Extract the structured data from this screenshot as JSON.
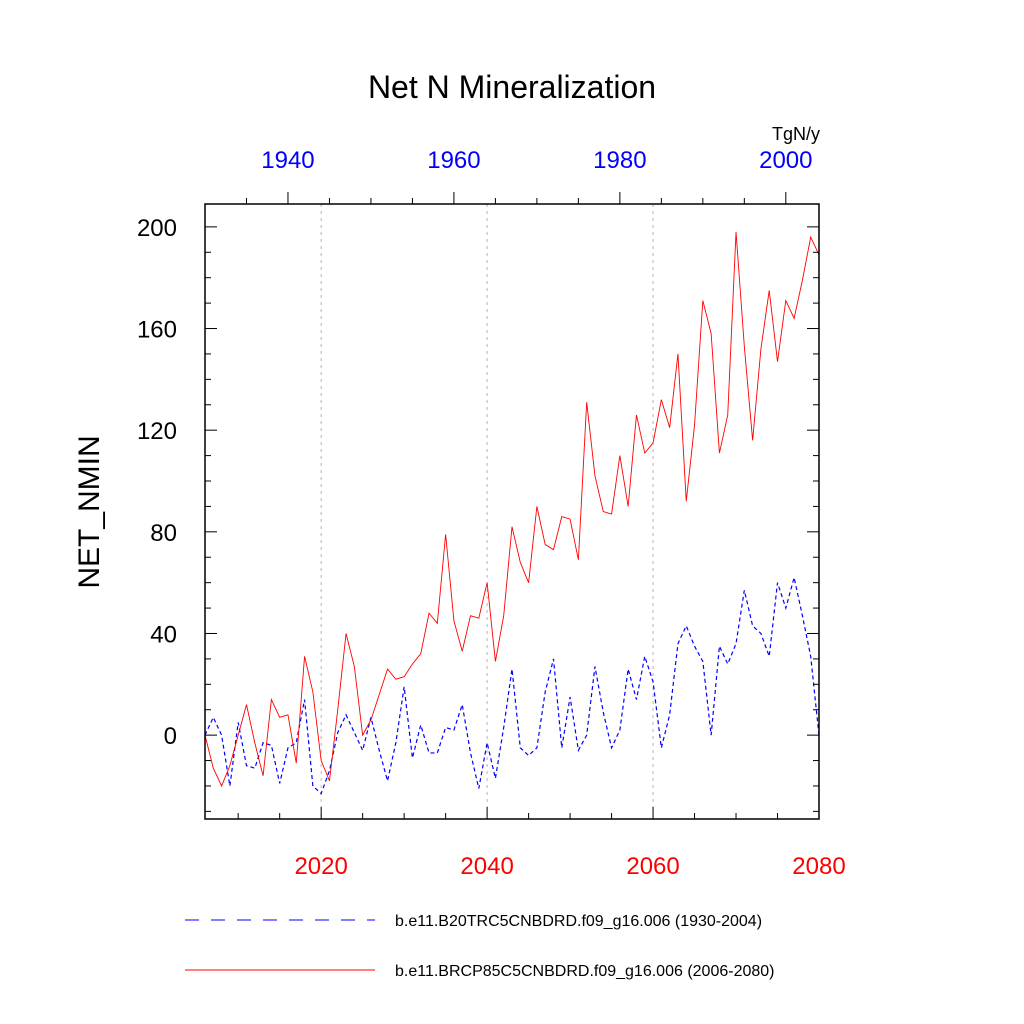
{
  "chart_data": {
    "type": "line",
    "title": "Net N Mineralization",
    "ylabel": "NET_NMIN",
    "units": "TgN/y",
    "ylim": [
      -33,
      209
    ],
    "yticks": [
      0,
      40,
      80,
      120,
      160,
      200
    ],
    "x_bottom": {
      "range": [
        2006,
        2080
      ],
      "ticks": [
        2020,
        2040,
        2060,
        2080
      ],
      "color": "#ff0000"
    },
    "x_top": {
      "range": [
        1930,
        2004
      ],
      "ticks": [
        1940,
        1960,
        1980,
        2000
      ],
      "color": "#0000ff"
    },
    "grid_x": [
      2020,
      2040,
      2060
    ],
    "legend_position": "bottom",
    "series": [
      {
        "name": "b.e11.B20TRC5CNBDRD.f09_g16.006 (1930-2004)",
        "color": "#0000ff",
        "dash": "dashed",
        "axis": "top",
        "x": [
          1930,
          1931,
          1932,
          1933,
          1934,
          1935,
          1936,
          1937,
          1938,
          1939,
          1940,
          1941,
          1942,
          1943,
          1944,
          1945,
          1946,
          1947,
          1948,
          1949,
          1950,
          1951,
          1952,
          1953,
          1954,
          1955,
          1956,
          1957,
          1958,
          1959,
          1960,
          1961,
          1962,
          1963,
          1964,
          1965,
          1966,
          1967,
          1968,
          1969,
          1970,
          1971,
          1972,
          1973,
          1974,
          1975,
          1976,
          1977,
          1978,
          1979,
          1980,
          1981,
          1982,
          1983,
          1984,
          1985,
          1986,
          1987,
          1988,
          1989,
          1990,
          1991,
          1992,
          1993,
          1994,
          1995,
          1996,
          1997,
          1998,
          1999,
          2000,
          2001,
          2002,
          2003,
          2004
        ],
        "values": [
          0,
          7,
          0,
          -20,
          5,
          -12,
          -13,
          -3,
          -4,
          -19,
          -5,
          -3,
          14,
          -20,
          -23,
          -14,
          1,
          8,
          1,
          -6,
          7,
          -6,
          -18,
          -3,
          19,
          -9,
          4,
          -7,
          -7,
          3,
          2,
          12,
          -7,
          -21,
          -3,
          -17,
          3,
          26,
          -5,
          -8,
          -5,
          17,
          30,
          -5,
          15,
          -6,
          0,
          27,
          9,
          -5,
          2,
          26,
          14,
          31,
          21,
          -5,
          8,
          36,
          43,
          35,
          29,
          0,
          35,
          28,
          36,
          57,
          43,
          40,
          31,
          60,
          50,
          62,
          47,
          31,
          0
        ]
      },
      {
        "name": "b.e11.BRCP85C5CNBDRD.f09_g16.006 (2006-2080)",
        "color": "#ff0000",
        "dash": "solid",
        "axis": "bottom",
        "x": [
          2006,
          2007,
          2008,
          2009,
          2010,
          2011,
          2012,
          2013,
          2014,
          2015,
          2016,
          2017,
          2018,
          2019,
          2020,
          2021,
          2022,
          2023,
          2024,
          2025,
          2026,
          2027,
          2028,
          2029,
          2030,
          2031,
          2032,
          2033,
          2034,
          2035,
          2036,
          2037,
          2038,
          2039,
          2040,
          2041,
          2042,
          2043,
          2044,
          2045,
          2046,
          2047,
          2048,
          2049,
          2050,
          2051,
          2052,
          2053,
          2054,
          2055,
          2056,
          2057,
          2058,
          2059,
          2060,
          2061,
          2062,
          2063,
          2064,
          2065,
          2066,
          2067,
          2068,
          2069,
          2070,
          2071,
          2072,
          2073,
          2074,
          2075,
          2076,
          2077,
          2078,
          2079,
          2080
        ],
        "values": [
          0,
          -13,
          -20,
          -12,
          0,
          12,
          -3,
          -16,
          14,
          7,
          8,
          -11,
          31,
          17,
          -10,
          -18,
          10,
          40,
          27,
          0,
          6,
          16,
          26,
          22,
          23,
          28,
          32,
          48,
          44,
          79,
          45,
          33,
          47,
          46,
          60,
          29,
          47,
          82,
          68,
          60,
          90,
          75,
          73,
          86,
          85,
          69,
          131,
          102,
          88,
          87,
          110,
          90,
          126,
          111,
          115,
          132,
          121,
          150,
          92,
          122,
          171,
          158,
          111,
          126,
          198,
          153,
          116,
          152,
          175,
          147,
          171,
          164,
          179,
          196,
          189
        ]
      }
    ]
  }
}
